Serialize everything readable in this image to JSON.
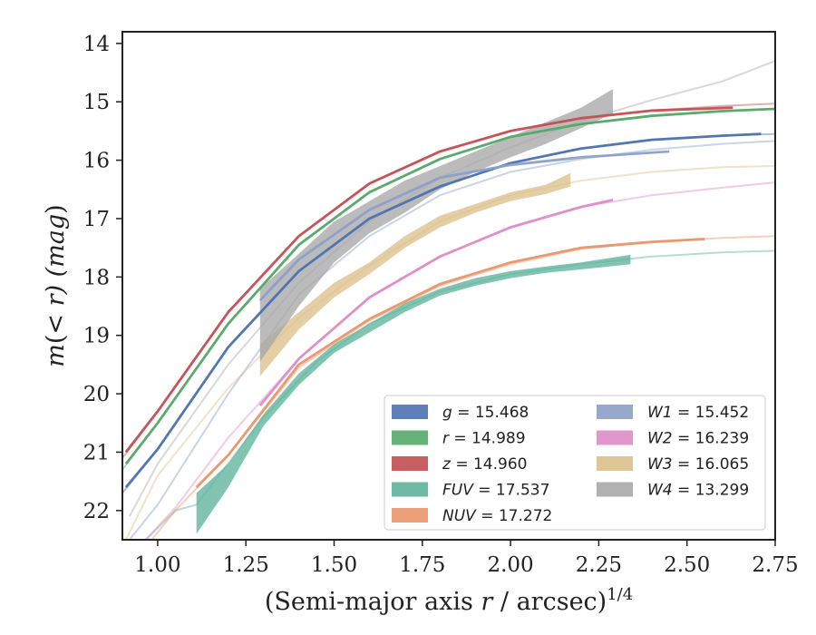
{
  "chart_data": {
    "type": "line",
    "xlabel": "(Semi-major axis r / arcsec)^{1/4}",
    "ylabel": "m(< r) (mag)",
    "xlim": [
      0.9,
      2.75
    ],
    "ylim": [
      22.5,
      13.8
    ],
    "y_inverted": true,
    "grid": false,
    "legend_position": "lower-right",
    "legend_columns": 2,
    "xticks": [
      "1.00",
      "1.25",
      "1.50",
      "1.75",
      "2.00",
      "2.25",
      "2.50",
      "2.75"
    ],
    "yticks": [
      "14",
      "15",
      "16",
      "17",
      "18",
      "19",
      "20",
      "21",
      "22"
    ],
    "xtick_values": [
      1.0,
      1.25,
      1.5,
      1.75,
      2.0,
      2.25,
      2.5,
      2.75
    ],
    "ytick_values": [
      14,
      15,
      16,
      17,
      18,
      19,
      20,
      21,
      22
    ],
    "series": [
      {
        "name": "g = 15.468",
        "label_var": "g",
        "label_val": "15.468",
        "color": "#4c72b0",
        "faint": [
          [
            0.9,
            21.7
          ],
          [
            1.0,
            20.95
          ],
          [
            1.2,
            19.2
          ],
          [
            1.4,
            17.9
          ],
          [
            1.6,
            17.0
          ],
          [
            1.8,
            16.45
          ],
          [
            2.0,
            16.05
          ],
          [
            2.2,
            15.8
          ],
          [
            2.4,
            15.65
          ],
          [
            2.6,
            15.58
          ],
          [
            2.75,
            15.55
          ]
        ],
        "bright": [
          [
            0.91,
            21.6
          ],
          [
            1.0,
            20.95
          ],
          [
            1.2,
            19.2
          ],
          [
            1.4,
            17.9
          ],
          [
            1.6,
            17.0
          ],
          [
            1.8,
            16.45
          ],
          [
            2.0,
            16.05
          ],
          [
            2.2,
            15.8
          ],
          [
            2.4,
            15.65
          ],
          [
            2.6,
            15.58
          ],
          [
            2.71,
            15.55
          ]
        ],
        "band": []
      },
      {
        "name": "r = 14.989",
        "label_var": "r",
        "label_val": "14.989",
        "color": "#55a868",
        "faint": [
          [
            0.9,
            21.3
          ],
          [
            1.0,
            20.5
          ],
          [
            1.2,
            18.8
          ],
          [
            1.4,
            17.45
          ],
          [
            1.6,
            16.55
          ],
          [
            1.8,
            15.98
          ],
          [
            2.0,
            15.6
          ],
          [
            2.2,
            15.38
          ],
          [
            2.4,
            15.24
          ],
          [
            2.6,
            15.16
          ],
          [
            2.75,
            15.12
          ]
        ],
        "bright": [
          [
            0.91,
            21.2
          ],
          [
            1.0,
            20.5
          ],
          [
            1.2,
            18.8
          ],
          [
            1.4,
            17.45
          ],
          [
            1.6,
            16.55
          ],
          [
            1.8,
            15.98
          ],
          [
            2.0,
            15.6
          ],
          [
            2.2,
            15.38
          ],
          [
            2.4,
            15.24
          ],
          [
            2.6,
            15.16
          ],
          [
            2.75,
            15.12
          ]
        ],
        "band": []
      },
      {
        "name": "z = 14.960",
        "label_var": "z",
        "label_val": "14.960",
        "color": "#c44e52",
        "faint": [
          [
            0.9,
            21.1
          ],
          [
            1.0,
            20.3
          ],
          [
            1.2,
            18.6
          ],
          [
            1.4,
            17.3
          ],
          [
            1.6,
            16.4
          ],
          [
            1.8,
            15.85
          ],
          [
            2.0,
            15.5
          ],
          [
            2.2,
            15.28
          ],
          [
            2.4,
            15.15
          ],
          [
            2.6,
            15.07
          ],
          [
            2.75,
            15.03
          ]
        ],
        "bright": [
          [
            0.91,
            21.0
          ],
          [
            1.0,
            20.3
          ],
          [
            1.2,
            18.6
          ],
          [
            1.4,
            17.3
          ],
          [
            1.6,
            16.4
          ],
          [
            1.8,
            15.85
          ],
          [
            2.0,
            15.5
          ],
          [
            2.2,
            15.28
          ],
          [
            2.4,
            15.15
          ],
          [
            2.63,
            15.1
          ]
        ],
        "band": []
      },
      {
        "name": "FUV = 17.537",
        "label_var": "FUV",
        "label_val": "17.537",
        "color": "#5fb39b",
        "faint": [
          [
            0.95,
            22.6
          ],
          [
            1.05,
            22.0
          ],
          [
            1.11,
            21.9
          ],
          [
            1.3,
            20.4
          ],
          [
            1.45,
            19.45
          ],
          [
            1.6,
            18.8
          ],
          [
            1.8,
            18.25
          ],
          [
            2.0,
            17.95
          ],
          [
            2.2,
            17.78
          ],
          [
            2.4,
            17.65
          ],
          [
            2.6,
            17.58
          ],
          [
            2.75,
            17.55
          ]
        ],
        "bright": [],
        "band": [
          [
            1.11,
            21.7,
            22.4
          ],
          [
            1.2,
            21.2,
            21.6
          ],
          [
            1.3,
            20.35,
            20.55
          ],
          [
            1.4,
            19.65,
            19.85
          ],
          [
            1.5,
            19.15,
            19.3
          ],
          [
            1.6,
            18.8,
            18.95
          ],
          [
            1.7,
            18.45,
            18.6
          ],
          [
            1.8,
            18.2,
            18.32
          ],
          [
            1.9,
            18.02,
            18.15
          ],
          [
            2.0,
            17.9,
            18.02
          ],
          [
            2.1,
            17.82,
            17.93
          ],
          [
            2.2,
            17.75,
            17.87
          ],
          [
            2.34,
            17.62,
            17.78
          ]
        ]
      },
      {
        "name": "NUV = 17.272",
        "label_var": "NUV",
        "label_val": "17.272",
        "color": "#e8956a",
        "faint": [
          [
            0.97,
            22.6
          ],
          [
            1.05,
            22.0
          ],
          [
            1.2,
            21.05
          ],
          [
            1.4,
            19.55
          ],
          [
            1.6,
            18.75
          ],
          [
            1.8,
            18.15
          ],
          [
            2.0,
            17.78
          ],
          [
            2.2,
            17.52
          ],
          [
            2.4,
            17.4
          ],
          [
            2.6,
            17.33
          ],
          [
            2.75,
            17.3
          ]
        ],
        "bright": [
          [
            1.11,
            21.6
          ],
          [
            1.2,
            21.05
          ],
          [
            1.4,
            19.5
          ],
          [
            1.6,
            18.72
          ],
          [
            1.8,
            18.12
          ],
          [
            2.0,
            17.75
          ],
          [
            2.2,
            17.5
          ],
          [
            2.4,
            17.4
          ],
          [
            2.55,
            17.35
          ]
        ],
        "band": []
      },
      {
        "name": "W1 = 15.452",
        "label_var": "W1",
        "label_val": "15.452",
        "color": "#8c9fc8",
        "faint": [
          [
            0.92,
            22.5
          ],
          [
            1.0,
            21.9
          ],
          [
            1.2,
            20.0
          ],
          [
            1.4,
            18.3
          ],
          [
            1.6,
            17.3
          ],
          [
            1.8,
            16.6
          ],
          [
            2.0,
            16.2
          ],
          [
            2.2,
            15.98
          ],
          [
            2.4,
            15.82
          ],
          [
            2.6,
            15.72
          ],
          [
            2.75,
            15.67
          ]
        ],
        "bright": [
          [
            1.29,
            18.4
          ],
          [
            1.4,
            17.7
          ],
          [
            1.6,
            16.85
          ],
          [
            1.8,
            16.3
          ],
          [
            2.0,
            16.08
          ],
          [
            2.2,
            15.95
          ],
          [
            2.45,
            15.85
          ]
        ],
        "band": []
      },
      {
        "name": "W2 = 16.239",
        "label_var": "W2",
        "label_val": "16.239",
        "color": "#dd8cc4",
        "faint": [
          [
            0.95,
            22.6
          ],
          [
            1.05,
            21.95
          ],
          [
            1.2,
            20.75
          ],
          [
            1.4,
            19.4
          ],
          [
            1.6,
            18.35
          ],
          [
            1.8,
            17.65
          ],
          [
            2.0,
            17.15
          ],
          [
            2.2,
            16.8
          ],
          [
            2.4,
            16.6
          ],
          [
            2.6,
            16.47
          ],
          [
            2.75,
            16.38
          ]
        ],
        "bright": [
          [
            1.29,
            20.2
          ],
          [
            1.4,
            19.4
          ],
          [
            1.6,
            18.35
          ],
          [
            1.8,
            17.65
          ],
          [
            2.0,
            17.15
          ],
          [
            2.2,
            16.8
          ],
          [
            2.29,
            16.68
          ]
        ],
        "band": []
      },
      {
        "name": "W3 = 16.065",
        "label_var": "W3",
        "label_val": "16.065",
        "color": "#dcc08c",
        "faint": [
          [
            0.91,
            22.5
          ],
          [
            1.0,
            21.4
          ],
          [
            1.2,
            19.9
          ],
          [
            1.4,
            18.7
          ],
          [
            1.6,
            17.8
          ],
          [
            1.8,
            17.05
          ],
          [
            2.0,
            16.6
          ],
          [
            2.2,
            16.35
          ],
          [
            2.4,
            16.2
          ],
          [
            2.6,
            16.12
          ],
          [
            2.75,
            16.1
          ]
        ],
        "bright": [],
        "band": [
          [
            1.29,
            19.15,
            19.7
          ],
          [
            1.4,
            18.6,
            18.9
          ],
          [
            1.5,
            18.1,
            18.35
          ],
          [
            1.6,
            17.75,
            17.95
          ],
          [
            1.7,
            17.3,
            17.5
          ],
          [
            1.8,
            16.95,
            17.15
          ],
          [
            1.9,
            16.75,
            16.9
          ],
          [
            2.0,
            16.55,
            16.7
          ],
          [
            2.1,
            16.42,
            16.58
          ],
          [
            2.17,
            16.22,
            16.45
          ]
        ]
      },
      {
        "name": "W4 = 13.299",
        "label_var": "W4",
        "label_val": "13.299",
        "color": "#a8a8a8",
        "faint": [
          [
            0.92,
            22.1
          ],
          [
            1.0,
            21.2
          ],
          [
            1.2,
            19.5
          ],
          [
            1.4,
            18.1
          ],
          [
            1.6,
            17.05
          ],
          [
            1.8,
            16.3
          ],
          [
            2.0,
            15.78
          ],
          [
            2.2,
            15.33
          ],
          [
            2.4,
            14.97
          ],
          [
            2.6,
            14.65
          ],
          [
            2.75,
            14.3
          ]
        ],
        "bright": [],
        "band": [
          [
            1.29,
            18.2,
            19.45
          ],
          [
            1.4,
            17.6,
            18.5
          ],
          [
            1.5,
            17.05,
            17.75
          ],
          [
            1.53,
            16.95,
            17.6
          ],
          [
            1.6,
            16.7,
            17.25
          ],
          [
            1.7,
            16.35,
            16.9
          ],
          [
            1.8,
            16.1,
            16.5
          ],
          [
            1.9,
            15.85,
            16.2
          ],
          [
            2.0,
            15.6,
            15.95
          ],
          [
            2.1,
            15.35,
            15.72
          ],
          [
            2.2,
            15.1,
            15.45
          ],
          [
            2.29,
            14.78,
            15.2
          ]
        ]
      }
    ]
  }
}
